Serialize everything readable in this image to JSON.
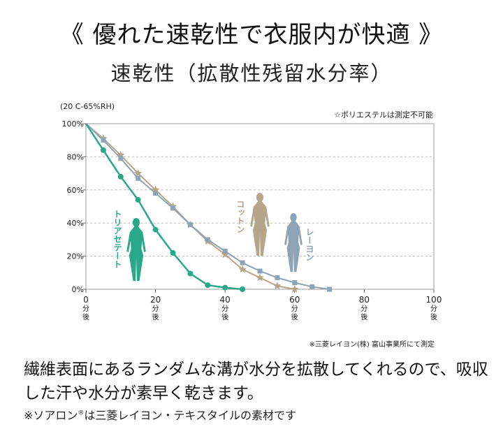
{
  "header": {
    "headline": "《 優れた速乾性で衣服内が快適 》",
    "subtitle": "速乾性（拡散性残留水分率）"
  },
  "chart_data": {
    "type": "line",
    "condition": "(20 C-65%RH)",
    "note": "☆ポリエステルは測定不可能",
    "ylim": [
      0,
      100
    ],
    "xlim": [
      0,
      100
    ],
    "y_ticks": [
      "0%",
      "20%",
      "40%",
      "60%",
      "80%",
      "100%"
    ],
    "y_tick_values": [
      0,
      20,
      40,
      60,
      80,
      100
    ],
    "x_ticks": [
      {
        "value": 0,
        "label": "0",
        "unit1": "分",
        "unit2": "後"
      },
      {
        "value": 20,
        "label": "20",
        "unit1": "分",
        "unit2": "後"
      },
      {
        "value": 40,
        "label": "40",
        "unit1": "分",
        "unit2": "後"
      },
      {
        "value": 60,
        "label": "60",
        "unit1": "分",
        "unit2": "後"
      },
      {
        "value": 80,
        "label": "80",
        "unit1": "分",
        "unit2": "後"
      },
      {
        "value": 100,
        "label": "100",
        "unit1": "分",
        "unit2": "後"
      }
    ],
    "grid": true,
    "series": [
      {
        "name": "コットン",
        "color": "#b5a58a",
        "marker": "star",
        "x": [
          0,
          5,
          10,
          15,
          20,
          25,
          30,
          35,
          40,
          45,
          50,
          55,
          60
        ],
        "y": [
          100,
          91,
          81,
          70,
          60,
          50,
          39,
          29,
          21,
          12,
          7,
          2,
          0
        ]
      },
      {
        "name": "レーヨン",
        "color": "#8ea3b3",
        "marker": "square",
        "x": [
          0,
          5,
          10,
          15,
          20,
          25,
          30,
          35,
          40,
          45,
          50,
          55,
          60,
          65,
          70
        ],
        "y": [
          100,
          90,
          79,
          67,
          58,
          49,
          39,
          30,
          23,
          16,
          11,
          7,
          4,
          1.5,
          0
        ]
      },
      {
        "name": "トリアセテート",
        "color": "#2aa98a",
        "marker": "circle",
        "x": [
          0,
          5,
          10,
          15,
          20,
          25,
          30,
          35,
          40,
          45
        ],
        "y": [
          100,
          84,
          68,
          54,
          36,
          22,
          9.5,
          2.5,
          1,
          0
        ]
      }
    ]
  },
  "source_note": "※三菱レイヨン(株) 富山事業所にて測定",
  "description": "繊維表面にあるランダムな溝が水分を拡散してくれるので、吸収した汗や水分が素早く乾きます。",
  "footnote": {
    "prefix": "※ソアロン",
    "reg": "®",
    "suffix": "は三菱レイヨン・テキスタイルの素材です"
  }
}
